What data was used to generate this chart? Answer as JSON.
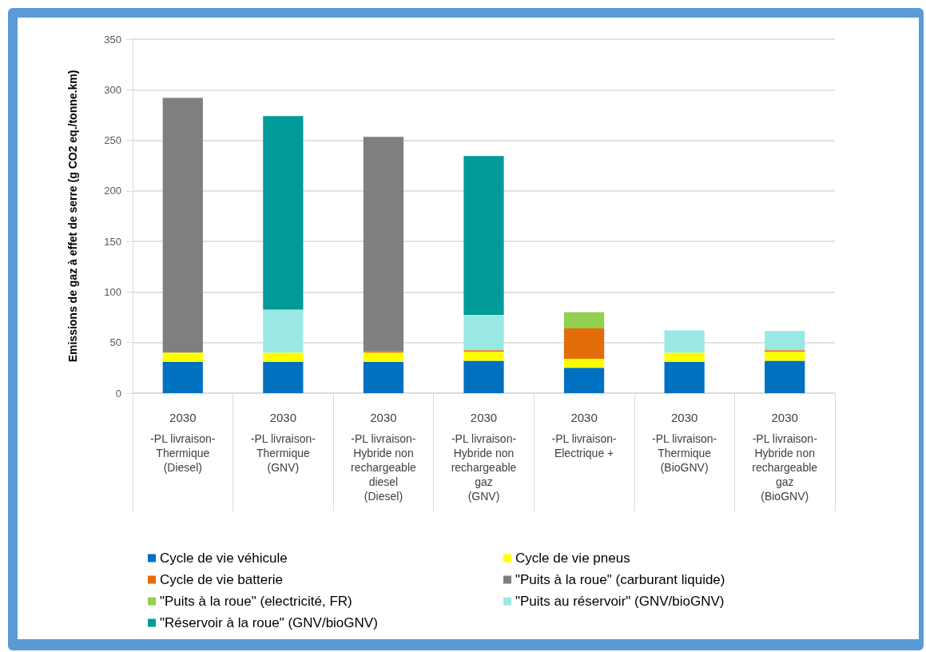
{
  "chart_data": {
    "type": "bar",
    "stacked": true,
    "ylabel": "Emissions de gaz à effet de serre (g CO2 eq./tonne.km)",
    "categories": [
      "2030\n-PL livraison-\nThermique\n(Diesel)",
      "2030\n-PL livraison-\nThermique\n(GNV)",
      "2030\n-PL livraison-\nHybride non\nrechargeable\ndiesel\n(Diesel)",
      "2030\n-PL livraison-\nHybride non\nrechargeable\ngaz\n(GNV)",
      "2030\n-PL livraison-\nElectrique +",
      "2030\n-PL livraison-\nThermique\n(BioGNV)",
      "2030\n-PL livraison-\nHybride non\nrechargeable\ngaz\n(BioGNV)"
    ],
    "series": [
      {
        "name": "Cycle de vie véhicule",
        "color": "#0070c0",
        "values": [
          31,
          31,
          31,
          32,
          25,
          31,
          32
        ]
      },
      {
        "name": "Cycle de vie pneus",
        "color": "#ffff00",
        "values": [
          9,
          9,
          9,
          9,
          9,
          9,
          9
        ]
      },
      {
        "name": "Cycle de vie batterie",
        "color": "#e46c0a",
        "values": [
          null,
          null,
          1.5,
          1.5,
          30,
          null,
          1.5
        ]
      },
      {
        "name": "\"Puits à la roue\" (carburant liquide)",
        "color": "#7f7f7f",
        "values": [
          252,
          null,
          212,
          null,
          null,
          null,
          null
        ]
      },
      {
        "name": "\"Puits à la roue\" (electricité, FR)",
        "color": "#92d050",
        "values": [
          null,
          null,
          null,
          null,
          16,
          null,
          null
        ]
      },
      {
        "name": "\"Puits au réservoir\" (GNV/bioGNV)",
        "color": "#9ae8e4",
        "values": [
          null,
          42.5,
          null,
          35,
          null,
          22,
          19
        ]
      },
      {
        "name": "\"Réservoir à la roue\" (GNV/bioGNV)",
        "color": "#009a99",
        "values": [
          null,
          191.5,
          null,
          157,
          null,
          null,
          null
        ]
      }
    ],
    "ylim": [
      0,
      350
    ],
    "yticks": [
      0,
      50,
      100,
      150,
      200,
      250,
      300,
      350
    ],
    "grid": "y",
    "legend": "bottom"
  }
}
